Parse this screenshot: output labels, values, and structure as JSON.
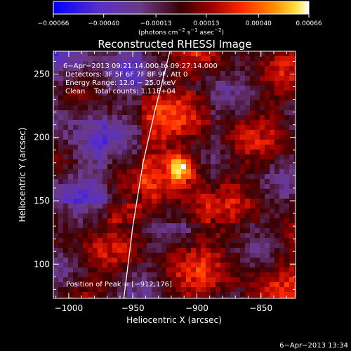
{
  "chart_data": {
    "type": "heatmap",
    "title": "Reconstructed RHESSI Image",
    "xlabel": "Heliocentric X (arcsec)",
    "ylabel": "Heliocentric Y (arcsec)",
    "xlim": [
      -1012,
      -823
    ],
    "ylim": [
      73,
      268
    ],
    "x_ticks": [
      {
        "value": -1000,
        "label": "−1000"
      },
      {
        "value": -950,
        "label": "−950"
      },
      {
        "value": -900,
        "label": "−900"
      },
      {
        "value": -850,
        "label": "−850"
      }
    ],
    "y_ticks": [
      {
        "value": 100,
        "label": "100"
      },
      {
        "value": 150,
        "label": "150"
      },
      {
        "value": 200,
        "label": "200"
      },
      {
        "value": 250,
        "label": "250"
      }
    ],
    "colorbar": {
      "range": [
        -0.00066,
        0.00066
      ],
      "ticks": [
        {
          "value": -0.00066,
          "label": "−0.00066"
        },
        {
          "value": -0.0004,
          "label": "−0.00040"
        },
        {
          "value": -0.00013,
          "label": "−0.00013"
        },
        {
          "value": 0.00013,
          "label": "0.00013"
        },
        {
          "value": 0.0004,
          "label": "0.00040"
        },
        {
          "value": 0.00066,
          "label": "0.00066"
        }
      ],
      "unit_text": "(photons cm",
      "unit_exp1": "−2",
      "unit_mid": " s",
      "unit_exp2": "−1",
      "unit_mid2": " asec",
      "unit_exp3": "−2",
      "unit_end": ")"
    },
    "annotations": {
      "time_range": "6−Apr−2013 09:21:14.000 to 09:27:14.000",
      "detectors": "Detectors: 3F 5F 6F 7F 8F 9F, Att 0",
      "energy": "Energy Range: 12.0 − 25.0 keV",
      "clean": "Clean    Total counts: 1.11E+04",
      "peak": "Position of Peak = [−912,176]"
    },
    "peak": {
      "x": -912,
      "y": 176
    },
    "limb": [
      [
        -957,
        73
      ],
      [
        -950,
        130
      ],
      [
        -942,
        180
      ],
      [
        -933,
        220
      ],
      [
        -921,
        268
      ]
    ]
  },
  "timestamp": "6−Apr−2013 13:34"
}
